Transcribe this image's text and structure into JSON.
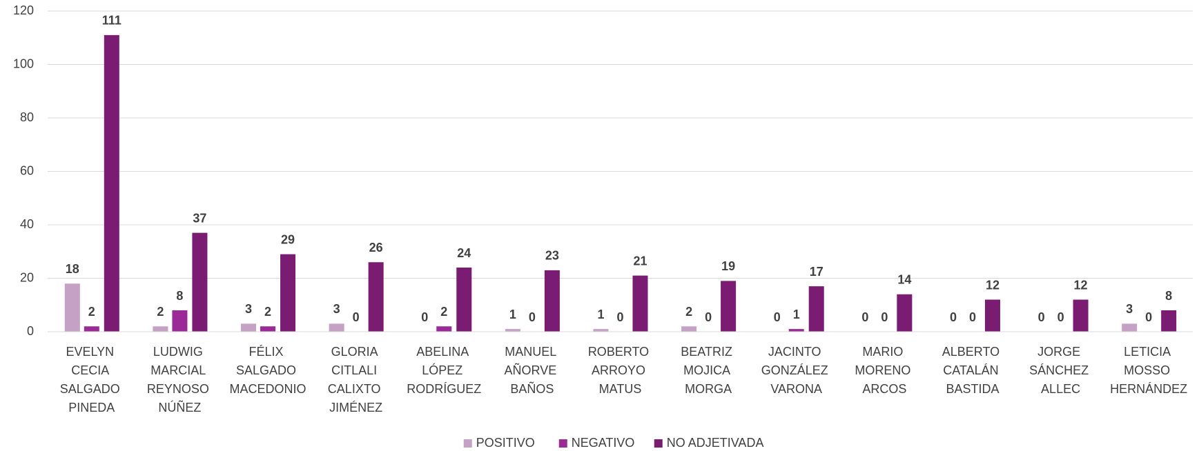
{
  "chart_data": {
    "type": "bar",
    "categories": [
      "EVELYN CECIA SALGADO PINEDA",
      "LUDWIG MARCIAL REYNOSO NÚÑEZ",
      "FÉLIX SALGADO MACEDONIO",
      "GLORIA CITLALI CALIXTO JIMÉNEZ",
      "ABELINA LÓPEZ RODRÍGUEZ",
      "MANUEL AÑORVE BAÑOS",
      "ROBERTO ARROYO MATUS",
      "BEATRIZ MOJICA MORGA",
      "JACINTO GONZÁLEZ VARONA",
      "MARIO MORENO ARCOS",
      "ALBERTO CATALÁN BASTIDA",
      "JORGE SÁNCHEZ ALLEC",
      "LETICIA MOSSO HERNÁNDEZ"
    ],
    "series": [
      {
        "name": "POSITIVO",
        "color": "#c6a1c6",
        "values": [
          18,
          2,
          3,
          3,
          0,
          1,
          1,
          2,
          0,
          0,
          0,
          0,
          3
        ]
      },
      {
        "name": "NEGATIVO",
        "color": "#9a2a96",
        "values": [
          2,
          8,
          2,
          0,
          2,
          0,
          0,
          0,
          1,
          0,
          0,
          0,
          0
        ]
      },
      {
        "name": "NO ADJETIVADA",
        "color": "#7a1c72",
        "values": [
          111,
          37,
          29,
          26,
          24,
          23,
          21,
          19,
          17,
          14,
          12,
          12,
          8
        ]
      }
    ],
    "ylim": [
      0,
      120
    ],
    "yticks": [
      0,
      20,
      40,
      60,
      80,
      100,
      120
    ],
    "grid": true,
    "legend": "bottom"
  }
}
